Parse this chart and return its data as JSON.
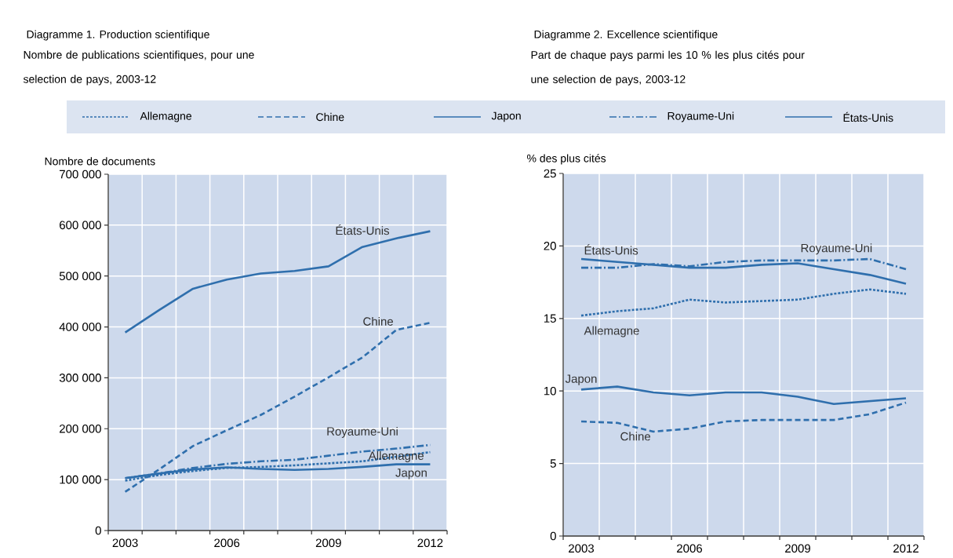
{
  "chart_data": [
    {
      "type": "line",
      "title": "Diagramme 1. Production scientifique",
      "subtitle": "Nombre de publications scientifiques, pour une selection de pays, 2003-12",
      "ylabel": "Nombre de documents",
      "categories": [
        "2003",
        null,
        null,
        "2006",
        null,
        null,
        "2009",
        null,
        null,
        "2012"
      ],
      "ylim": [
        0,
        700000
      ],
      "yticks": [
        0,
        {
          "value": 100000,
          "label": "100 000"
        },
        {
          "value": 200000,
          "label": "200 000"
        },
        {
          "value": 300000,
          "label": "300 000"
        },
        {
          "value": 400000,
          "label": "400 000"
        },
        {
          "value": 500000,
          "label": "500 000"
        },
        {
          "value": 600000,
          "label": "600 000"
        },
        {
          "value": 700000,
          "label": "700 000"
        }
      ],
      "grid": true,
      "legend": "top",
      "marker": "none",
      "series": [
        {
          "name": "Allemagne",
          "color": "#2f6fad",
          "line_style": "dotted",
          "values": [
            98000,
            109000,
            117000,
            123000,
            125000,
            128000,
            132000,
            136000,
            145000,
            154000
          ]
        },
        {
          "name": "Chine",
          "color": "#2f6fad",
          "line_style": "dashed",
          "values": [
            76000,
            120000,
            166000,
            197000,
            227000,
            263000,
            301000,
            340000,
            394000,
            408000
          ]
        },
        {
          "name": "Japon",
          "color": "#2f6fad",
          "line_style": "solid",
          "values": [
            103000,
            112000,
            120000,
            124000,
            121000,
            119000,
            121000,
            125000,
            130000,
            130000
          ]
        },
        {
          "name": "Royaume-Uni",
          "color": "#2f6fad",
          "line_style": "dashdot",
          "values": [
            103000,
            112000,
            123000,
            131000,
            136000,
            139000,
            147000,
            155000,
            161000,
            168000
          ]
        },
        {
          "name": "États-Unis",
          "color": "#2f6fad",
          "line_style": "solid",
          "values": [
            389000,
            433000,
            475000,
            493000,
            505000,
            510000,
            519000,
            557000,
            574000,
            588000
          ]
        }
      ]
    },
    {
      "type": "line",
      "title": "Diagramme 2. Excellence scientifique",
      "subtitle": "Part de chaque pays parmi les 10 % les plus cités pour une selection de pays, 2003-12",
      "ylabel": "% des plus cités",
      "categories": [
        "2003",
        null,
        null,
        "2006",
        null,
        null,
        "2009",
        null,
        null,
        "2012"
      ],
      "ylim": [
        0,
        25
      ],
      "yticks": [
        0,
        5,
        10,
        15,
        20,
        25
      ],
      "grid": true,
      "marker": "none",
      "series": [
        {
          "name": "Allemagne",
          "color": "#2f6fad",
          "line_style": "dotted",
          "values": [
            15.2,
            15.5,
            15.7,
            16.3,
            16.1,
            16.2,
            16.3,
            16.7,
            17.0,
            16.7
          ]
        },
        {
          "name": "Chine",
          "color": "#2f6fad",
          "line_style": "dashed",
          "values": [
            7.9,
            7.8,
            7.2,
            7.4,
            7.9,
            8.0,
            8.0,
            8.0,
            8.4,
            9.2
          ]
        },
        {
          "name": "Japon",
          "color": "#2f6fad",
          "line_style": "solid",
          "values": [
            10.1,
            10.3,
            9.9,
            9.7,
            9.9,
            9.9,
            9.6,
            9.1,
            9.3,
            9.5
          ]
        },
        {
          "name": "Royaume-Uni",
          "color": "#2f6fad",
          "line_style": "dashdot",
          "values": [
            18.5,
            18.5,
            18.75,
            18.6,
            18.9,
            19.0,
            19.0,
            19.0,
            19.1,
            18.4
          ]
        },
        {
          "name": "États-Unis",
          "color": "#2f6fad",
          "line_style": "solid",
          "values": [
            19.1,
            18.9,
            18.7,
            18.5,
            18.5,
            18.7,
            18.8,
            18.4,
            18.0,
            17.4
          ]
        }
      ]
    }
  ]
}
